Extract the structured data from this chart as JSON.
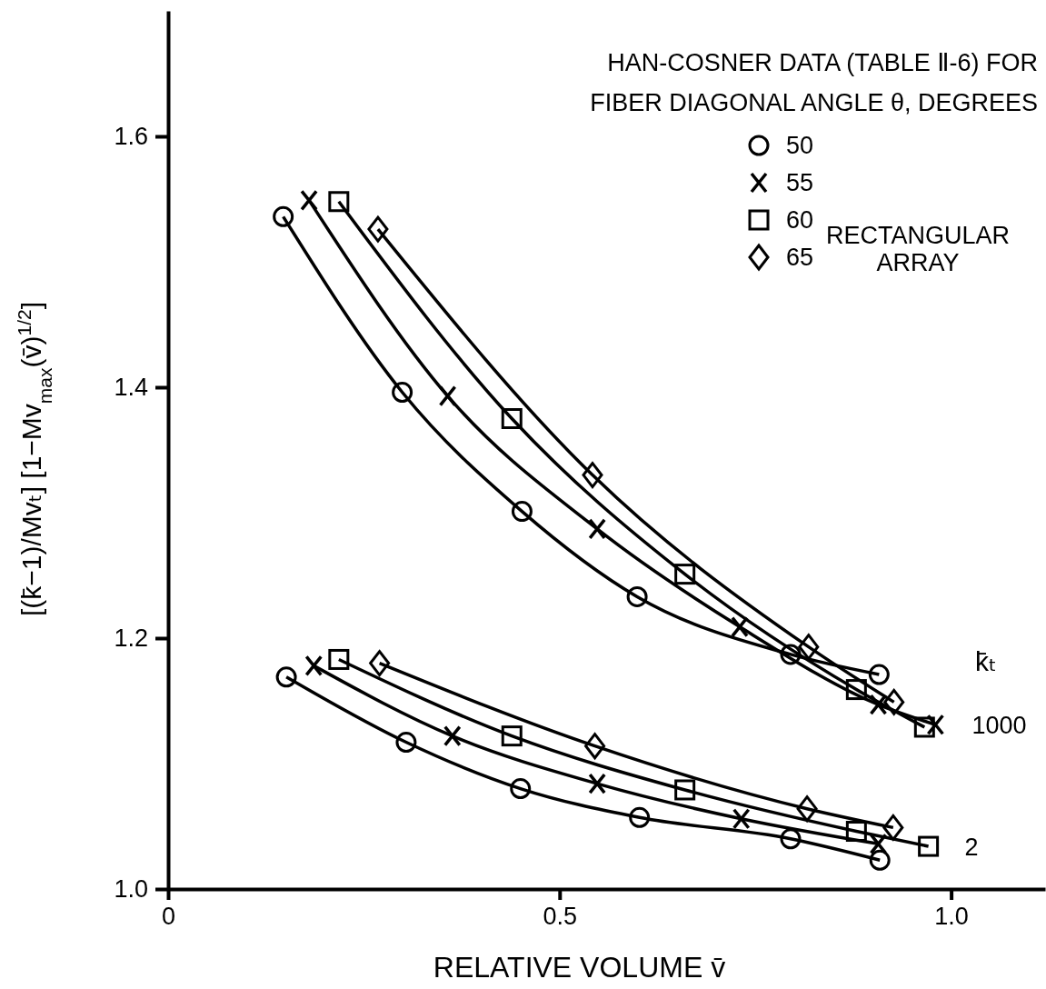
{
  "chart_data": {
    "type": "line",
    "legend_title": "HAN-COSNER DATA (TABLE Ⅱ-6) FOR\nFIBER DIAGONAL ANGLE θ, DEGREES",
    "xlabel": "RELATIVE VOLUME v̄",
    "ylabel": "[(k̄−1)/Mvₜ] [1−Mv$_{max}$(v̄)$^{1/2}$]",
    "xlim": [
      0,
      1.12
    ],
    "ylim": [
      1.0,
      1.7
    ],
    "xticks": [
      0,
      0.5,
      {
        "value": 1.0,
        "label": "1.0"
      }
    ],
    "yticks": [
      {
        "value": 1.0,
        "label": "1.0"
      },
      {
        "value": 1.2,
        "label": "1.2"
      },
      {
        "value": 1.4,
        "label": "1.4"
      },
      {
        "value": 1.6,
        "label": "1.6"
      }
    ],
    "grid": false,
    "legend": "top right",
    "line_style": "solid",
    "series": [
      {
        "name": "50",
        "marker": "circle",
        "color": "#000000",
        "x": [
          0.147,
          0.299,
          0.452,
          0.599,
          0.795,
          0.908
        ],
        "values": [
          1.536,
          1.396,
          1.301,
          1.233,
          1.187,
          1.171
        ]
      },
      {
        "name": "55",
        "marker": "cross",
        "color": "#000000",
        "x": [
          0.18,
          0.357,
          0.548,
          0.73,
          0.907,
          0.98
        ],
        "values": [
          1.549,
          1.393,
          1.287,
          1.209,
          1.147,
          1.131
        ]
      },
      {
        "name": "60",
        "marker": "square",
        "color": "#000000",
        "x": [
          0.218,
          0.439,
          0.66,
          0.879,
          0.966
        ],
        "values": [
          1.548,
          1.375,
          1.251,
          1.159,
          1.129
        ]
      },
      {
        "name": "65",
        "marker": "diamond",
        "color": "#000000",
        "x": [
          0.268,
          0.542,
          0.818,
          0.927
        ],
        "values": [
          1.526,
          1.33,
          1.193,
          1.149
        ]
      },
      {
        "marker": "circle",
        "color": "#000000",
        "x": [
          0.151,
          0.304,
          0.45,
          0.602,
          0.795,
          0.909
        ],
        "values": [
          1.169,
          1.117,
          1.08,
          1.057,
          1.04,
          1.023
        ]
      },
      {
        "marker": "cross",
        "color": "#000000",
        "x": [
          0.186,
          0.363,
          0.548,
          0.732,
          0.907
        ],
        "values": [
          1.178,
          1.122,
          1.084,
          1.056,
          1.036
        ]
      },
      {
        "marker": "square",
        "color": "#000000",
        "x": [
          0.218,
          0.439,
          0.66,
          0.879,
          0.971
        ],
        "values": [
          1.183,
          1.122,
          1.079,
          1.046,
          1.034
        ]
      },
      {
        "marker": "diamond",
        "color": "#000000",
        "x": [
          0.27,
          0.545,
          0.816,
          0.926
        ],
        "values": [
          1.18,
          1.114,
          1.064,
          1.049
        ]
      }
    ],
    "annotations": [
      "RECTANGULAR\nARRAY",
      "k̄ₜ",
      {
        "text": "1000",
        "x": 0.98,
        "y": 1.131
      },
      {
        "text": "2",
        "x": 0.971,
        "y": 1.034
      }
    ]
  }
}
